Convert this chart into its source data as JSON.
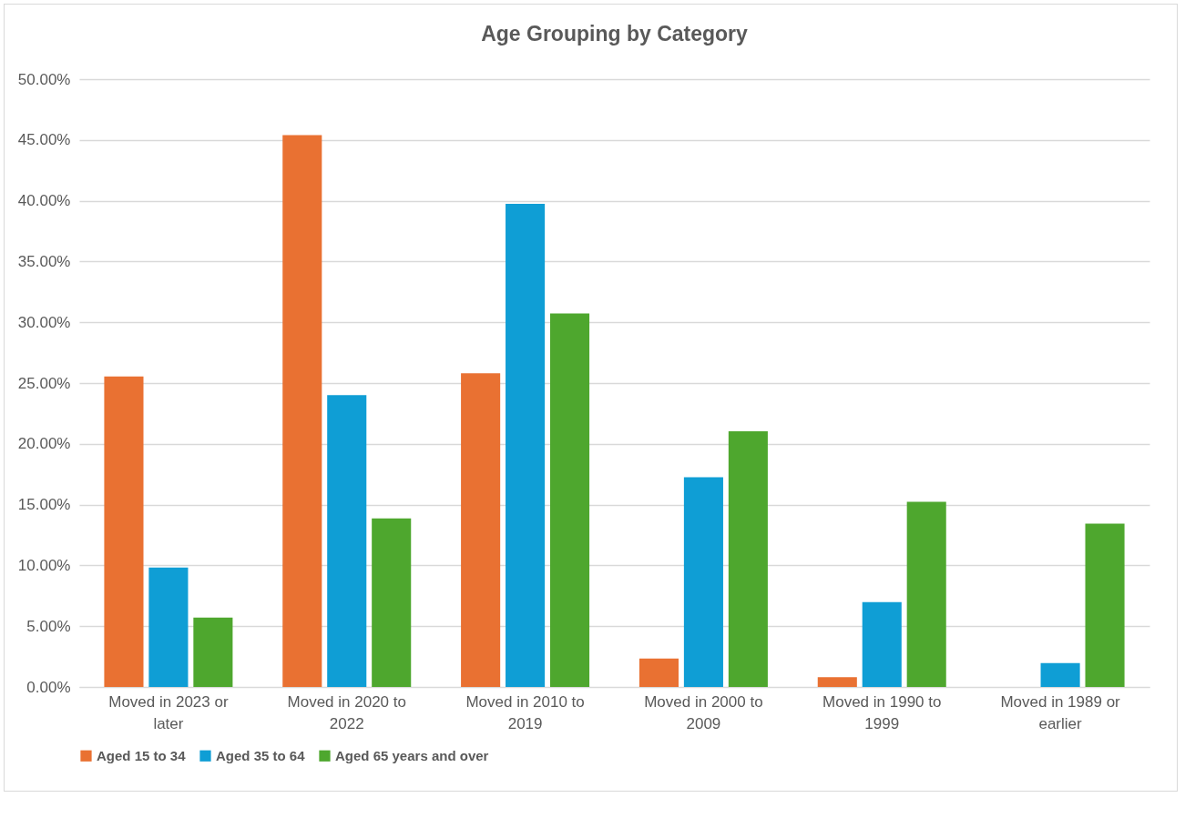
{
  "chart_data": {
    "type": "bar",
    "title": "Age Grouping by Category",
    "categories": [
      "Moved in 2023 or later",
      "Moved in 2020 to 2022",
      "Moved in 2010 to 2019",
      "Moved in 2000 to 2009",
      "Moved in 1990 to 1999",
      "Moved in 1989 or earlier"
    ],
    "series": [
      {
        "name": "Aged 15 to 34",
        "color": "#e97132",
        "values": [
          25.55,
          45.4,
          25.8,
          2.34,
          0.81,
          0
        ]
      },
      {
        "name": "Aged 35 to 64",
        "color": "#0f9ed5",
        "values": [
          9.82,
          24.0,
          39.75,
          17.26,
          6.98,
          1.96
        ]
      },
      {
        "name": "Aged 65 years and over",
        "color": "#4ea72e",
        "values": [
          5.71,
          13.86,
          30.73,
          21.03,
          15.23,
          13.43
        ]
      }
    ],
    "ylim": [
      0,
      50
    ],
    "yticks": [
      {
        "value": 0,
        "label": "0.00%"
      },
      {
        "value": 5,
        "label": "5.00%"
      },
      {
        "value": 10,
        "label": "10.00%"
      },
      {
        "value": 15,
        "label": "15.00%"
      },
      {
        "value": 20,
        "label": "20.00%"
      },
      {
        "value": 25,
        "label": "25.00%"
      },
      {
        "value": 30,
        "label": "30.00%"
      },
      {
        "value": 35,
        "label": "35.00%"
      },
      {
        "value": 40,
        "label": "40.00%"
      },
      {
        "value": 45,
        "label": "45.00%"
      },
      {
        "value": 50,
        "label": "50.00%"
      }
    ],
    "grid": "y",
    "legend": "bottom"
  }
}
